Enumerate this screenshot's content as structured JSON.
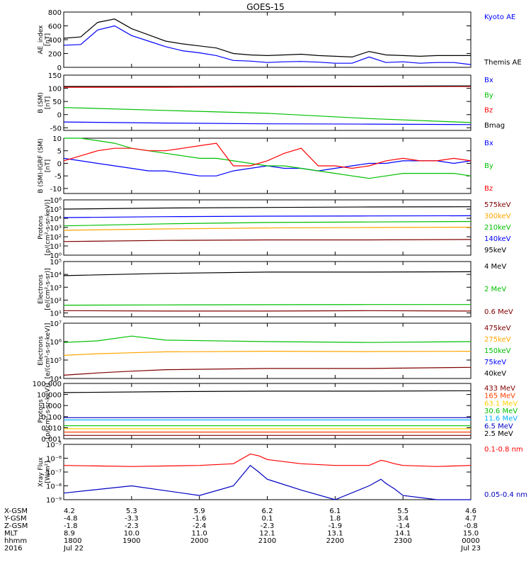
{
  "title": "GOES-15",
  "chart_data": [
    {
      "type": "line",
      "ylabel": "AE_index\n[nT]",
      "ylim": [
        0,
        800
      ],
      "ticks": [
        "0",
        "200",
        "400",
        "600",
        "800"
      ],
      "tick_values": [
        0,
        200,
        400,
        600,
        800
      ],
      "x": [
        0,
        1,
        2,
        3,
        4,
        5,
        6,
        7,
        8,
        9,
        10,
        11,
        12,
        13,
        14,
        15,
        16,
        17,
        18,
        19,
        20,
        21,
        22,
        23,
        24
      ],
      "series": [
        {
          "name": "Kyoto AE",
          "color": "#0000ff",
          "values": [
            320,
            330,
            540,
            600,
            460,
            380,
            300,
            240,
            210,
            170,
            100,
            90,
            70,
            80,
            85,
            75,
            60,
            60,
            150,
            70,
            80,
            60,
            70,
            70,
            40
          ]
        },
        {
          "name": "Themis AE",
          "color": "#000000",
          "values": [
            420,
            440,
            650,
            700,
            560,
            470,
            380,
            340,
            310,
            280,
            200,
            180,
            170,
            180,
            190,
            170,
            160,
            150,
            230,
            180,
            170,
            160,
            170,
            170,
            170
          ]
        }
      ]
    },
    {
      "type": "line",
      "ylabel": "B (SM)\n[nT]",
      "ylim": [
        -60,
        150
      ],
      "ticks": [
        "-50",
        "0",
        "50",
        "100",
        "150"
      ],
      "tick_values": [
        -50,
        0,
        50,
        100,
        150
      ],
      "x": [
        0,
        6,
        12,
        18,
        24
      ],
      "series": [
        {
          "name": "Bx",
          "color": "#0000ff",
          "values": [
            -28,
            -32,
            -35,
            -36,
            -38
          ]
        },
        {
          "name": "By",
          "color": "#00c000",
          "values": [
            27,
            16,
            5,
            -15,
            -30
          ]
        },
        {
          "name": "Bz",
          "color": "#ff0000",
          "values": [
            104,
            104,
            105,
            106,
            107
          ]
        },
        {
          "name": "Bmag",
          "color": "#000000",
          "values": [
            107,
            107,
            108,
            108,
            109
          ]
        }
      ]
    },
    {
      "type": "line",
      "ylabel": "B (SM)-IGRF (SM)\n[nT]",
      "ylim": [
        -12,
        10
      ],
      "ticks": [
        "-10",
        "-5",
        "0",
        "5",
        "10"
      ],
      "tick_values": [
        -10,
        -5,
        0,
        5,
        10
      ],
      "x": [
        0,
        1,
        2,
        3,
        4,
        5,
        6,
        7,
        8,
        9,
        10,
        11,
        12,
        13,
        14,
        15,
        16,
        17,
        18,
        19,
        20,
        21,
        22,
        23,
        24
      ],
      "series": [
        {
          "name": "Bx",
          "color": "#0000ff",
          "values": [
            2,
            1,
            0,
            -1,
            -2,
            -3,
            -3,
            -4,
            -5,
            -5,
            -3,
            -2,
            -1,
            -2,
            -2,
            -3,
            -2,
            -1,
            0,
            0,
            1,
            1,
            1,
            0,
            1
          ]
        },
        {
          "name": "By",
          "color": "#00c000",
          "values": [
            10,
            10,
            9,
            8,
            6,
            5,
            4,
            3,
            2,
            2,
            1,
            0,
            -1,
            -1,
            -2,
            -3,
            -4,
            -5,
            -6,
            -5,
            -4,
            -4,
            -4,
            -4,
            -5
          ]
        },
        {
          "name": "Bz",
          "color": "#ff0000",
          "values": [
            1,
            3,
            5,
            6,
            6,
            5,
            5,
            6,
            7,
            8,
            -1,
            -1,
            1,
            4,
            6,
            -1,
            -1,
            -2,
            -1,
            1,
            2,
            1,
            1,
            2,
            1
          ]
        }
      ]
    },
    {
      "type": "line",
      "logy": true,
      "ylabel": "Protons\n[p/(cm²-s-sr-keV)]",
      "ylim": [
        1,
        1000000
      ],
      "ticks": [
        "10⁰",
        "10¹",
        "10²",
        "10³",
        "10⁴",
        "10⁵",
        "10⁶"
      ],
      "tick_values": [
        1,
        10,
        100,
        1000,
        10000,
        100000,
        1000000
      ],
      "x": [
        0,
        6,
        12,
        18,
        24
      ],
      "series": [
        {
          "name": "575keV",
          "color": "#800000",
          "values": [
            30,
            40,
            45,
            45,
            50
          ]
        },
        {
          "name": "300keV",
          "color": "#ffa500",
          "values": [
            500,
            700,
            900,
            1000,
            1100
          ]
        },
        {
          "name": "210keV",
          "color": "#00c000",
          "values": [
            1500,
            2500,
            3500,
            4000,
            4500
          ]
        },
        {
          "name": "140keV",
          "color": "#0000ff",
          "values": [
            12000,
            15000,
            17000,
            18000,
            19000
          ]
        },
        {
          "name": "95keV",
          "color": "#000000",
          "values": [
            100000,
            130000,
            150000,
            170000,
            180000
          ]
        }
      ]
    },
    {
      "type": "line",
      "logy": true,
      "ylabel": "Electrons\n[e/(cm²-s-sr)]",
      "ylim": [
        5,
        100000
      ],
      "ticks": [
        "10¹",
        "10²",
        "10³",
        "10⁴",
        "10⁵"
      ],
      "tick_values": [
        10,
        100,
        1000,
        10000,
        100000
      ],
      "x": [
        0,
        6,
        12,
        18,
        24
      ],
      "series": [
        {
          "name": "4 MeV",
          "color": "#000000",
          "values": [
            8000,
            12000,
            15000,
            15000,
            16000
          ]
        },
        {
          "name": "2 MeV",
          "color": "#00c000",
          "values": [
            40,
            42,
            44,
            45,
            45
          ]
        },
        {
          "name": "0.6 MeV",
          "color": "#800000",
          "values": [
            15,
            14,
            14,
            15,
            14
          ]
        }
      ]
    },
    {
      "type": "line",
      "logy": true,
      "ylabel": "Electrons\n[e/(cm²-s-sr-keV)]",
      "ylim": [
        10000,
        10000000
      ],
      "ticks": [
        "10⁴",
        "10⁵",
        "10⁶",
        "10⁷"
      ],
      "tick_values": [
        10000,
        100000,
        1000000,
        10000000
      ],
      "x": [
        0,
        2,
        4,
        6,
        12,
        18,
        24
      ],
      "series": [
        {
          "name": "475keV",
          "color": "#800000",
          "values": [
            15000,
            20000,
            25000,
            30000,
            35000,
            35000,
            40000
          ]
        },
        {
          "name": "275keV",
          "color": "#ffa500",
          "values": [
            180000,
            220000,
            250000,
            280000,
            300000,
            290000,
            300000
          ]
        },
        {
          "name": "150keV",
          "color": "#00c000",
          "values": [
            900000,
            1100000,
            2000000,
            1200000,
            1000000,
            900000,
            1000000
          ]
        },
        {
          "name": "75keV",
          "color": "#0000ff",
          "values": [
            null,
            null,
            null,
            null,
            null,
            null,
            null
          ]
        },
        {
          "name": "40keV",
          "color": "#000000",
          "values": [
            null,
            null,
            null,
            null,
            null,
            null,
            null
          ]
        }
      ]
    },
    {
      "type": "line",
      "logy": true,
      "ylabel": "Protons\n[p/(cm²-s-sr-keV)]",
      "ylim": [
        0.001,
        100
      ],
      "ticks": [
        "0.001",
        "0.010",
        "0.100",
        "1.000",
        "10.000",
        "100.000"
      ],
      "tick_values": [
        0.001,
        0.01,
        0.1,
        1,
        10,
        100
      ],
      "x": [
        0,
        6,
        12,
        18,
        24
      ],
      "series": [
        {
          "name": "433 MeV",
          "color": "#800000",
          "values": [
            0.002,
            0.002,
            0.002,
            0.002,
            0.002
          ]
        },
        {
          "name": "165 MeV",
          "color": "#ff4000",
          "values": [
            0.004,
            0.004,
            0.004,
            0.004,
            0.004
          ]
        },
        {
          "name": "63.1 MeV",
          "color": "#ffd000",
          "values": [
            0.008,
            0.008,
            0.008,
            0.008,
            0.008
          ]
        },
        {
          "name": "30.6 MeV",
          "color": "#00c000",
          "values": [
            0.015,
            0.015,
            0.015,
            0.015,
            0.015
          ]
        },
        {
          "name": "11.6 MeV",
          "color": "#00b0ff",
          "values": [
            0.05,
            0.05,
            0.05,
            0.05,
            0.05
          ]
        },
        {
          "name": "6.5 MeV",
          "color": "#0000c0",
          "values": [
            0.08,
            0.08,
            0.08,
            0.08,
            0.08
          ]
        },
        {
          "name": "2.5 MeV",
          "color": "#000000",
          "values": [
            15,
            18,
            20,
            20,
            22
          ]
        }
      ]
    },
    {
      "type": "line",
      "logy": true,
      "ylabel": "Xray Flux\n[W/m²]",
      "ylim": [
        1e-09,
        1e-05
      ],
      "ticks": [
        "10⁻⁹",
        "10⁻⁸",
        "10⁻⁷",
        "10⁻⁶",
        "10⁻⁵"
      ],
      "tick_values": [
        1e-09,
        1e-08,
        1e-07,
        1e-06,
        1e-05
      ],
      "x": [
        0,
        4,
        8,
        10,
        11,
        11.5,
        12,
        14,
        16,
        18,
        18.7,
        19,
        19.5,
        20,
        22,
        24
      ],
      "series": [
        {
          "name": "0.1-0.8 nm",
          "color": "#ff0000",
          "values": [
            3e-07,
            2.5e-07,
            3e-07,
            4e-07,
            2e-06,
            1.5e-06,
            8e-07,
            4e-07,
            3e-07,
            3e-07,
            7e-07,
            6e-07,
            4e-07,
            3e-07,
            2.5e-07,
            3e-07
          ]
        },
        {
          "name": "0.05-0.4 nm",
          "color": "#0000c0",
          "values": [
            3e-09,
            1e-08,
            2e-09,
            1e-08,
            3e-07,
            1e-07,
            3e-08,
            5e-09,
            1e-09,
            1e-08,
            3e-08,
            1.5e-08,
            6e-09,
            2e-09,
            1e-09,
            1e-09
          ]
        }
      ]
    }
  ],
  "x_axis": {
    "row_labels": [
      "X-GSM",
      "Y-GSM",
      "Z-GSM",
      "MLT",
      "hhmm",
      "2016"
    ],
    "columns": [
      {
        "values": [
          "4.2",
          "-4.8",
          "-1.8",
          "8.9",
          "1800",
          "Jul 22"
        ]
      },
      {
        "values": [
          "5.3",
          "-3.3",
          "-2.3",
          "10.0",
          "1900",
          ""
        ]
      },
      {
        "values": [
          "5.9",
          "-1.6",
          "-2.4",
          "11.0",
          "2000",
          ""
        ]
      },
      {
        "values": [
          "6.2",
          "0.1",
          "-2.3",
          "12.1",
          "2100",
          ""
        ]
      },
      {
        "values": [
          "6.1",
          "1.8",
          "-1.9",
          "13.1",
          "2200",
          ""
        ]
      },
      {
        "values": [
          "5.5",
          "3.4",
          "-1.4",
          "14.1",
          "2300",
          ""
        ]
      },
      {
        "values": [
          "4.6",
          "4.7",
          "-0.8",
          "15.0",
          "0000",
          "Jul 23"
        ]
      }
    ]
  }
}
